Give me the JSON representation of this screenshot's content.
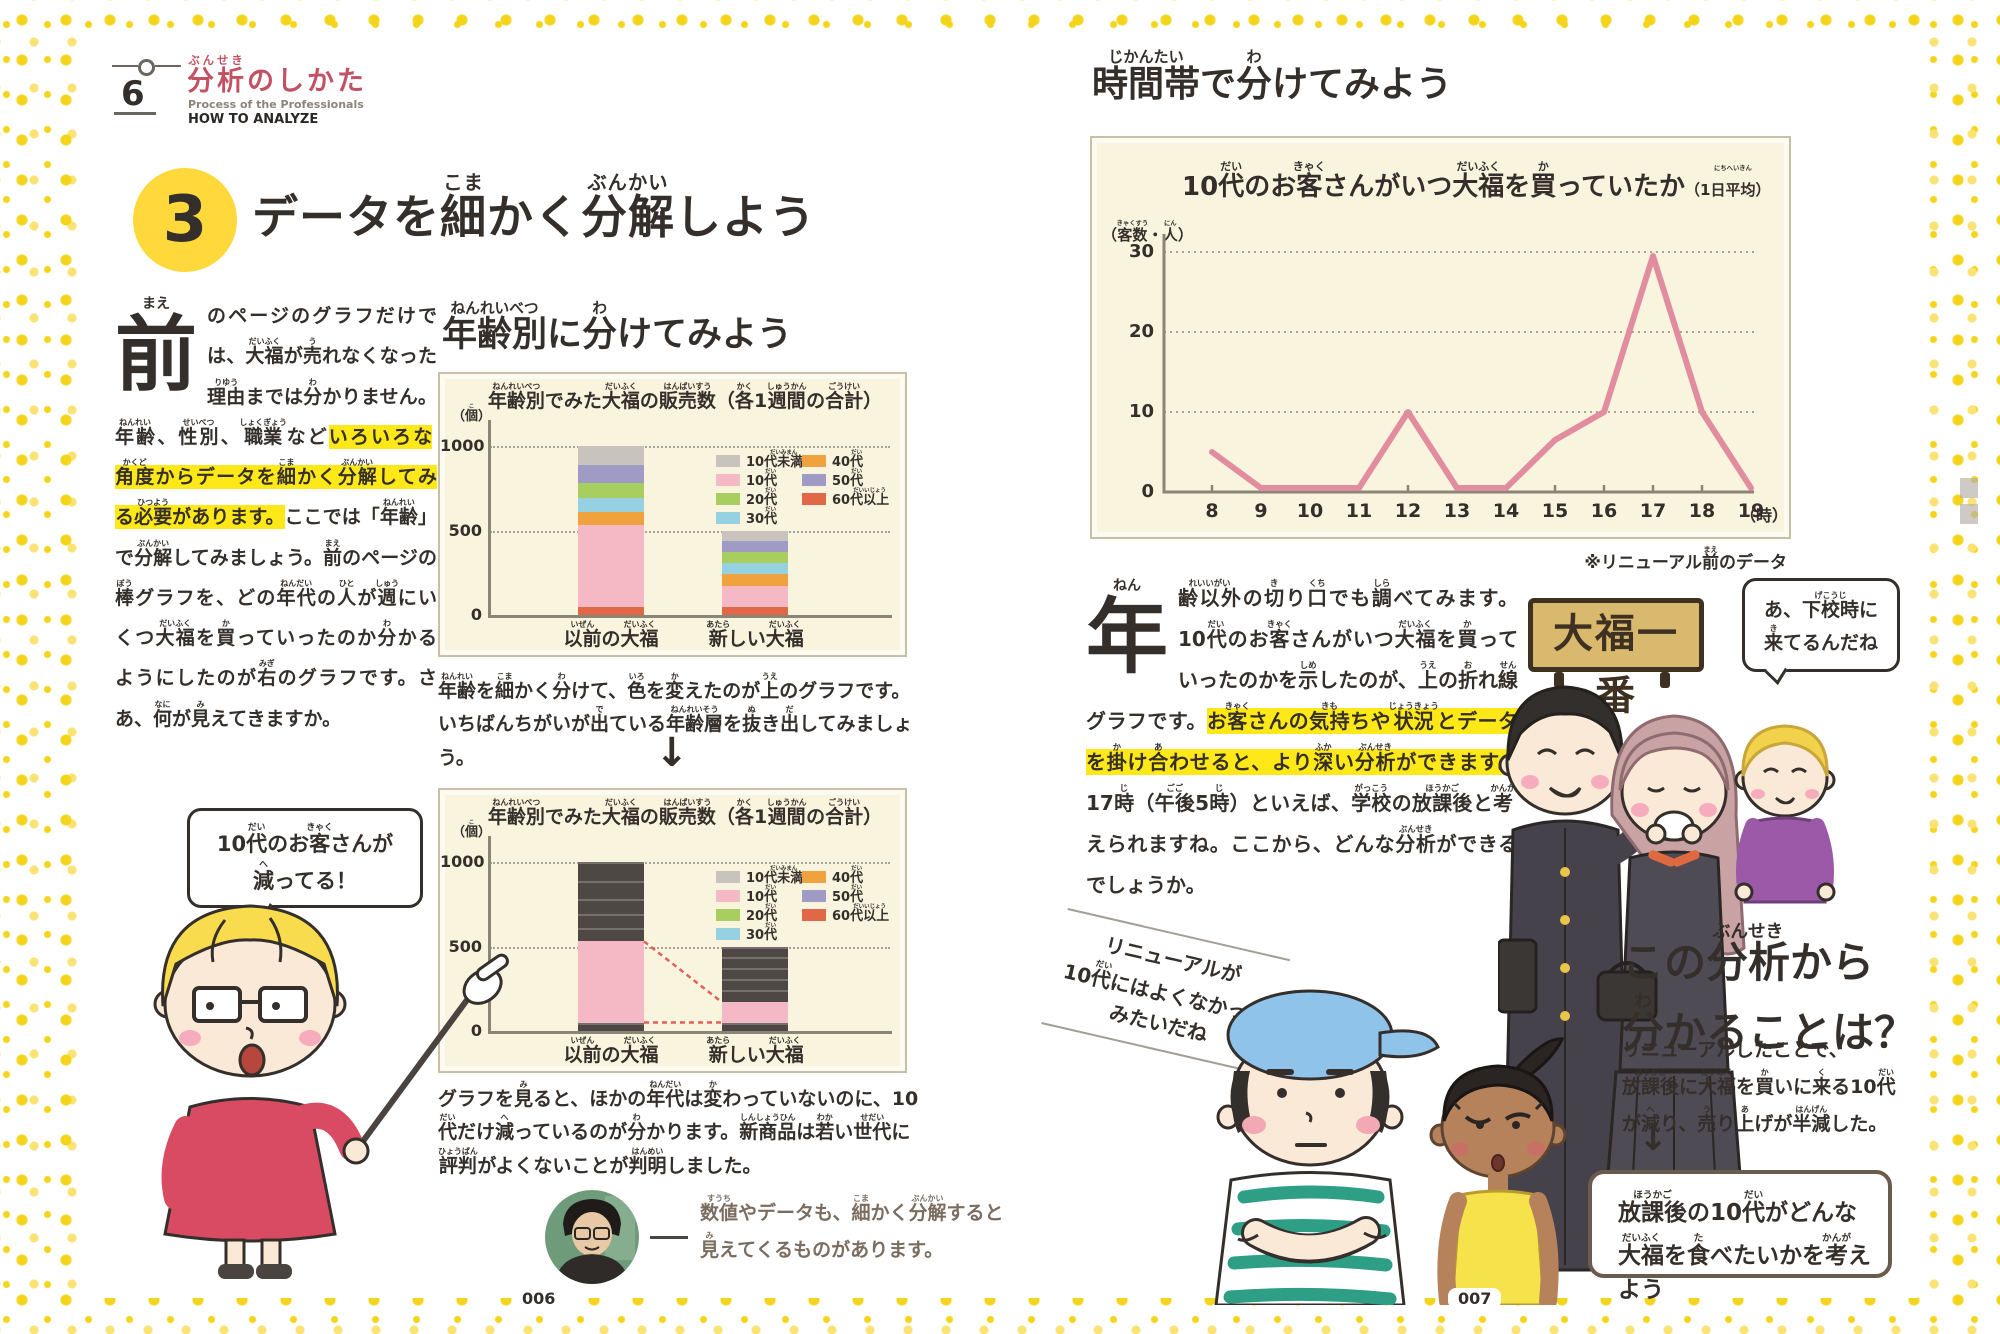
{
  "page_left": {
    "page_number": "006",
    "chapter": {
      "number": "6",
      "title": "{分析|ぶんせき}のしかた",
      "subtitle_en": "Process of the Professionals",
      "subtitle_caps": "HOW TO ANALYZE"
    },
    "badge": "3",
    "title": "データを{細|こま}かく{分解|ぶんかい}しよう",
    "intro_dropcap": "{前|まえ}",
    "intro_pre": "のページのグラフだけでは、{大福|だいふく}が{売|う}れなくなった{理由|りゆう}までは{分|わ}かりません。{年齢|ねんれい}、{性別|せいべつ}、{職業|しょくぎょう}など",
    "intro_highlight": "いろいろな{角度|かくど}からデータを{細|こま}かく{分解|ぶんかい}してみる{必要|ひつよう}があります。",
    "intro_post": "ここでは「{年齢|ねんれい}」で{分解|ぶんかい}してみましょう。{前|まえ}のページの{棒|ぼう}グラフを、どの{年代|ねんだい}の{人|ひと}が{週|しゅう}にいくつ{大福|だいふく}を{買|か}っていったのか{分|わ}かるようにしたのが{右|みぎ}のグラフです。さあ、{何|なに}が{見|み}えてきますか。",
    "subheading": "{年齢別|ねんれいべつ}に{分|わ}けてみよう",
    "caption_between": "{年齢|ねんれい}を{細|こま}かく{分|わ}けて、{色|いろ}を{変|か}えたのが{上|うえ}のグラフです。いちばんちがいが{出|で}ている{年齢層|ねんれいそう}を{抜|ぬ}き{出|だ}してみましょう。",
    "arrow": "↓",
    "bubble_line1": "10{代|だい}のお{客|きゃく}さんが",
    "bubble_line2": "{減|へ}ってる！",
    "caption_below": "グラフを{見|み}ると、ほかの{年代|ねんだい}は{変|か}わっていないのに、10{代|だい}だけ{減|へ}っているのが{分|わ}かります。{新商品|しんしょうひん}は{若|わか}い{世代|せだい}に{評判|ひょうばん}がよくないことが{判明|はんめい}しました。",
    "mentor_line1": "{数値|すうち}やデータも、{細|こま}かく{分解|ぶんかい}すると",
    "mentor_line2": "{見|み}えてくるものがあります。"
  },
  "page_right": {
    "page_number": "007",
    "heading": "{時間帯|じかんたい}で{分|わ}けてみよう",
    "intro_dropcap": "{年|ねん}",
    "intro_pre": "{齢以外|れいいがい}の{切|き}り{口|くち}でも{調|しら}べてみます。10{代|だい}のお{客|きゃく}さんがいつ{大福|だいふく}を{買|か}っていったのかを{示|しめ}したのが、{上|うえ}の{折|お}れ{線|せん}グラフです。",
    "intro_highlight": "お{客|きゃく}さんの{気持|きも}ちや{状況|じょうきょう}とデータを{掛|か}け{合|あ}わせると、より{深|ふか}い{分析|ぶんせき}ができます。",
    "intro_post": "17{時|じ}（{午後|ごご}5{時|じ}）といえば、{学校|がっこう}の{放課後|ほうかご}と{考|かんが}えられますね。ここから、どんな{分析|ぶんせき}ができるでしょうか。",
    "shop_sign": "大福一番",
    "kid_bubble_line1": "あ、{下校時|げこうじ}に",
    "kid_bubble_line2": "{来|き}てるんだね",
    "analysis_heading_line1": "この{分析|ぶんせき}から",
    "analysis_heading_line2": "{分|わ}かることは？",
    "quote_line1": "リニューアルが",
    "quote_line2": "10{代|だい}にはよくなかった",
    "quote_line3": "みたいだね",
    "analysis_line1": "リニューアルしたことで、",
    "analysis_line2": "{放課後|ほうかご}に{大福|だいふく}を{買|か}いに{来|く}る10{代|だい}",
    "analysis_line3": "が{減|へ}り、{売|う}り{上|あ}げが{半減|はんげん}した。",
    "arrow": "↓",
    "conclusion_line1": "{放課後|ほうかご}の10{代|だい}がどんな",
    "conclusion_line2": "{大福|だいふく}を{食|た}べたいかを{考|かんが}えよう"
  },
  "chart_data": [
    {
      "type": "bar",
      "stacked": true,
      "title": "{年齢別|ねんれいべつ}でみた{大福|だいふく}の{販売数|はんばいすう}（{各|かく}1{週間|しゅうかん}の{合計|ごうけい}）",
      "unit": "（{個|こ}）",
      "categories": [
        "{以前|いぜん}の{大福|だいふく}",
        "{新|あたら}しい{大福|だいふく}"
      ],
      "ylim": [
        0,
        1000
      ],
      "yticks": [
        0,
        500,
        1000
      ],
      "series": [
        {
          "name": "60代以上",
          "color": "#E06846",
          "values": [
            50,
            50
          ]
        },
        {
          "name": "10代",
          "color": "#F4B9C4",
          "values": [
            480,
            120
          ]
        },
        {
          "name": "40代",
          "color": "#F0A23E",
          "values": [
            80,
            70
          ]
        },
        {
          "name": "30代",
          "color": "#96D1E2",
          "values": [
            80,
            65
          ]
        },
        {
          "name": "20代",
          "color": "#A8CE5F",
          "values": [
            90,
            65
          ]
        },
        {
          "name": "50代",
          "color": "#9F9BC4",
          "values": [
            110,
            65
          ]
        },
        {
          "name": "10代未満",
          "color": "#C9C3BD",
          "values": [
            110,
            65
          ]
        }
      ],
      "legend": [
        {
          "label": "10{代未満|だいみまん}",
          "color": "#C9C3BD",
          "col": 0,
          "row": 0
        },
        {
          "label": "10{代|だい}",
          "color": "#F4B9C4",
          "col": 0,
          "row": 1
        },
        {
          "label": "20{代|だい}",
          "color": "#A8CE5F",
          "col": 0,
          "row": 2
        },
        {
          "label": "30{代|だい}",
          "color": "#96D1E2",
          "col": 0,
          "row": 3
        },
        {
          "label": "40{代|だい}",
          "color": "#F0A23E",
          "col": 1,
          "row": 0
        },
        {
          "label": "50{代|だい}",
          "color": "#9F9BC4",
          "col": 1,
          "row": 1
        },
        {
          "label": "60{代以上|だいいじょう}",
          "color": "#E06846",
          "col": 1,
          "row": 2
        }
      ],
      "highlight_keep": "10代",
      "dark_color": "#4D4843",
      "connector_color": "#E0605A"
    },
    {
      "type": "line",
      "title": "10{代|だい}のお{客|きゃく}さんがいつ{大福|だいふく}を{買|か}っていたか",
      "subtitle": "（1{日平均|にちへいきん}）",
      "ylabel": "（{客数|きゃくすう}・{人|にん}）",
      "x": [
        8,
        9,
        10,
        11,
        12,
        13,
        14,
        15,
        16,
        17,
        18,
        19
      ],
      "y": [
        5,
        0.5,
        0.5,
        0.5,
        10,
        0.5,
        0.5,
        6.5,
        10,
        29.5,
        10,
        0.5
      ],
      "yticks": [
        0,
        10,
        20,
        30
      ],
      "ylim": [
        0,
        33
      ],
      "xunit": "（時）",
      "color": "#E28CA0",
      "note": "※リニューアル{前|まえ}のデータ"
    }
  ],
  "colors": {
    "accent_yellow": "#FFD93B",
    "highlight": "#FFE817",
    "header_red": "#C25263",
    "chart_bg": "#F8F4DE",
    "dark_segment": "#4D4843",
    "line_pink": "#E28CA0",
    "text": "#352F2B",
    "caption_brown": "#7B6C60"
  }
}
